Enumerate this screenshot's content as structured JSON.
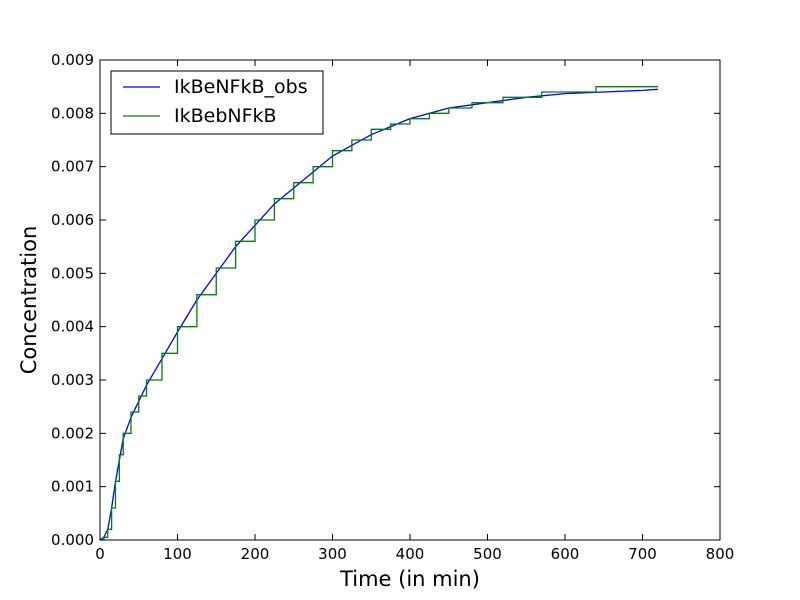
{
  "chart_data": {
    "type": "line",
    "title": "",
    "xlabel": "Time (in min)",
    "ylabel": "Concentration",
    "xlim": [
      0,
      800
    ],
    "ylim": [
      0,
      0.009
    ],
    "x_ticks": [
      0,
      100,
      200,
      300,
      400,
      500,
      600,
      700,
      800
    ],
    "x_tick_labels": [
      "0",
      "100",
      "200",
      "300",
      "400",
      "500",
      "600",
      "700",
      "800"
    ],
    "y_ticks": [
      0,
      0.001,
      0.002,
      0.003,
      0.004,
      0.005,
      0.006,
      0.007,
      0.008,
      0.009
    ],
    "y_tick_labels": [
      "0.000",
      "0.001",
      "0.002",
      "0.003",
      "0.004",
      "0.005",
      "0.006",
      "0.007",
      "0.008",
      "0.009"
    ],
    "grid": false,
    "legend_position": "top-left",
    "series": [
      {
        "name": "IkBeNFkB_obs",
        "color": "#0000ff",
        "style": "line",
        "x": [
          0,
          5,
          10,
          15,
          20,
          25,
          30,
          40,
          50,
          60,
          80,
          100,
          125,
          150,
          175,
          200,
          225,
          250,
          275,
          300,
          350,
          400,
          450,
          500,
          550,
          600,
          650,
          700,
          720
        ],
        "y": [
          0,
          5e-05,
          0.0002,
          0.0006,
          0.0011,
          0.0015,
          0.0019,
          0.0023,
          0.0026,
          0.0029,
          0.0034,
          0.0039,
          0.0045,
          0.005,
          0.0055,
          0.0059,
          0.0063,
          0.0066,
          0.0069,
          0.0072,
          0.0076,
          0.0079,
          0.0081,
          0.0082,
          0.0083,
          0.00837,
          0.0084,
          0.00843,
          0.00845
        ]
      },
      {
        "name": "IkBebNFkB",
        "color": "#008000",
        "style": "step",
        "x": [
          0,
          5,
          10,
          15,
          20,
          25,
          30,
          40,
          50,
          60,
          80,
          100,
          125,
          150,
          175,
          200,
          225,
          250,
          275,
          300,
          325,
          350,
          375,
          400,
          425,
          450,
          480,
          520,
          570,
          640,
          720
        ],
        "y": [
          0,
          5e-05,
          0.0002,
          0.0006,
          0.0011,
          0.0016,
          0.002,
          0.0024,
          0.0027,
          0.003,
          0.0035,
          0.004,
          0.0046,
          0.0051,
          0.0056,
          0.006,
          0.0064,
          0.0067,
          0.007,
          0.0073,
          0.0075,
          0.0077,
          0.0078,
          0.0079,
          0.008,
          0.0081,
          0.0082,
          0.0083,
          0.0084,
          0.0085,
          0.0085
        ]
      }
    ]
  }
}
